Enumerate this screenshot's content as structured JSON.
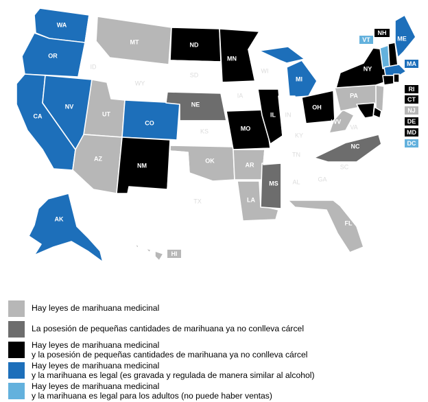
{
  "colors": {
    "medical": "#b7b7b7",
    "decrim": "#6d6d6d",
    "medical_decrim": "#000000",
    "legal_taxed": "#1d6fba",
    "legal_no_sales": "#63b1dd",
    "none": "#ffffff"
  },
  "states": {
    "WA": "WA",
    "OR": "OR",
    "CA": "CA",
    "NV": "NV",
    "CO": "CO",
    "AK": "AK",
    "MT": "MT",
    "ND": "ND",
    "MN": "MN",
    "MI": "MI",
    "NY": "NY",
    "OH": "OH",
    "IL": "IL",
    "MO": "MO",
    "NE": "NE",
    "UT": "UT",
    "AZ": "AZ",
    "NM": "NM",
    "OK": "OK",
    "AR": "AR",
    "LA": "LA",
    "MS": "MS",
    "NC": "NC",
    "WV": "WV",
    "PA": "PA",
    "FL": "FL",
    "HI": "HI",
    "ME": "ME",
    "MA": "MA",
    "NH": "NH",
    "VT": "VT",
    "RI": "RI",
    "CT": "CT",
    "NJ": "NJ",
    "DE": "DE",
    "MD": "MD",
    "DC": "DC",
    "ID": "ID",
    "WY": "WY",
    "SD": "SD",
    "KS": "KS",
    "TX": "TX",
    "IA": "IA",
    "WI": "WI",
    "IN": "IN",
    "KY": "KY",
    "TN": "TN",
    "AL": "AL",
    "GA": "GA",
    "SC": "SC",
    "VA": "VA"
  },
  "legend": [
    {
      "category": "medical",
      "text": "Hay leyes de marihuana medicinal"
    },
    {
      "category": "decrim",
      "text": "La posesión de pequeñas cantidades de marihuana ya no conlleva cárcel"
    },
    {
      "category": "medical_decrim",
      "text": "Hay leyes de marihuana medicinal\ny la posesión de pequeñas cantidades de marihuana ya no conlleva cárcel"
    },
    {
      "category": "legal_taxed",
      "text": "Hay leyes de marihuana medicinal\ny la marihuana es legal (es gravada y regulada de manera similar al alcohol)"
    },
    {
      "category": "legal_no_sales",
      "text": "Hay leyes de marihuana medicinal\ny la marihuana es legal para los adultos (no puede haber ventas)"
    }
  ]
}
